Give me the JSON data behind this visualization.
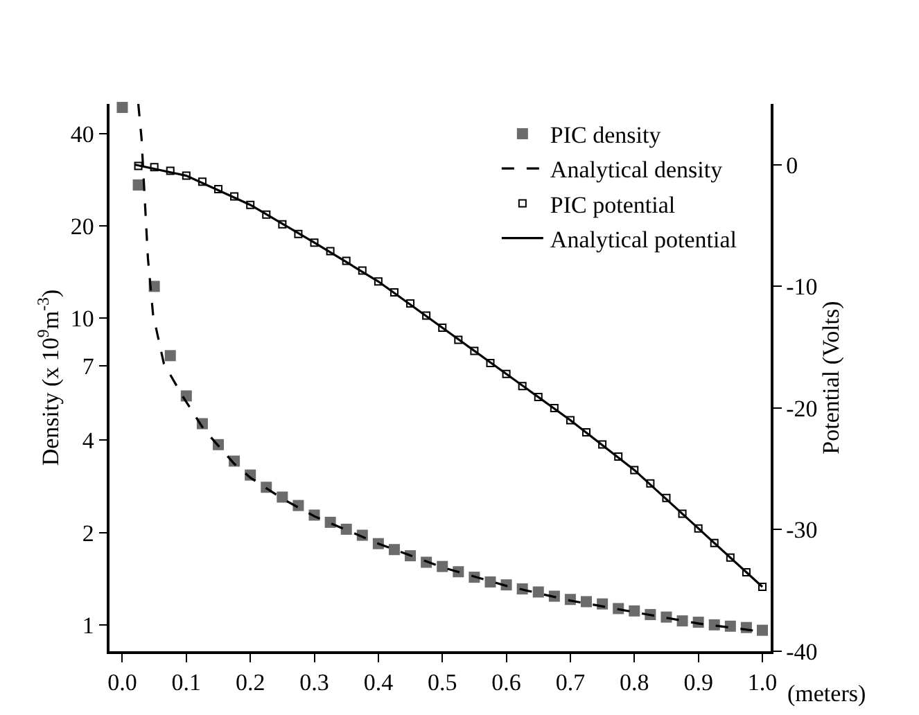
{
  "chart_data": {
    "type": "scatter",
    "xlabel": "(meters)",
    "ylabel": "Density (x 10$^{9}$m$^{-3}$)",
    "y2label": "Potential (Volts)",
    "log": "y",
    "grid": false,
    "legend": "top right",
    "xlim": [
      -0.02,
      1.013
    ],
    "xticks": [
      {
        "value": 0,
        "label": "0.0"
      },
      0.1,
      0.2,
      0.3,
      0.4,
      0.5,
      0.6,
      0.7,
      0.8,
      0.9,
      {
        "value": 1,
        "label": "1.0"
      }
    ],
    "ylim": [
      0.82,
      50
    ],
    "yticks": [
      1,
      2,
      4,
      7,
      10,
      20,
      40
    ],
    "y2lim": [
      -40,
      5
    ],
    "y2ticks": [
      -40,
      -30,
      -20,
      -10,
      0
    ],
    "series": [
      {
        "name": "PIC density",
        "type": "scatter",
        "marker": "square",
        "color": "#6b6b6b",
        "x": [
          0,
          0.025,
          0.05,
          0.075,
          0.1,
          0.125,
          0.15,
          0.175,
          0.2,
          0.225,
          0.25,
          0.275,
          0.3,
          0.325,
          0.35,
          0.375,
          0.4,
          0.425,
          0.45,
          0.475,
          0.5,
          0.525,
          0.55,
          0.575,
          0.6,
          0.625,
          0.65,
          0.675,
          0.7,
          0.725,
          0.75,
          0.775,
          0.8,
          0.825,
          0.85,
          0.875,
          0.9,
          0.925,
          0.95,
          0.975,
          1.0
        ],
        "values": [
          48.7,
          27.2,
          12.7,
          7.55,
          5.58,
          4.53,
          3.87,
          3.42,
          3.08,
          2.81,
          2.61,
          2.45,
          2.28,
          2.16,
          2.05,
          1.96,
          1.84,
          1.76,
          1.68,
          1.6,
          1.55,
          1.49,
          1.43,
          1.38,
          1.35,
          1.31,
          1.28,
          1.24,
          1.21,
          1.19,
          1.17,
          1.13,
          1.11,
          1.08,
          1.06,
          1.03,
          1.02,
          1.0,
          0.99,
          0.98,
          0.96
        ]
      },
      {
        "name": "Analytical density",
        "type": "line",
        "line_style": "dashed",
        "marker": "none",
        "color": "#000000",
        "x": [
          0.025,
          0.03,
          0.04,
          0.048,
          0.065,
          0.095,
          0.127,
          0.175,
          0.2,
          0.25,
          0.3,
          0.4,
          0.5,
          0.6,
          0.7,
          0.8,
          0.9,
          1.0
        ],
        "values": [
          50,
          38.7,
          15.7,
          10.3,
          7.1,
          5.54,
          4.35,
          3.35,
          3.02,
          2.58,
          2.26,
          1.84,
          1.54,
          1.34,
          1.2,
          1.1,
          1.01,
          0.95
        ]
      },
      {
        "name": "PIC potential",
        "type": "scatter",
        "marker": "square",
        "axis": "y2",
        "color": "#000000",
        "x": [
          0.025,
          0.05,
          0.075,
          0.1,
          0.125,
          0.15,
          0.175,
          0.2,
          0.225,
          0.25,
          0.275,
          0.3,
          0.325,
          0.35,
          0.375,
          0.4,
          0.425,
          0.45,
          0.475,
          0.5,
          0.525,
          0.55,
          0.575,
          0.6,
          0.625,
          0.65,
          0.675,
          0.7,
          0.725,
          0.75,
          0.775,
          0.8,
          0.825,
          0.85,
          0.875,
          0.9,
          0.925,
          0.95,
          0.975,
          1.0
        ],
        "values": [
          -0.1,
          -0.2,
          -0.5,
          -0.9,
          -1.4,
          -2.0,
          -2.6,
          -3.3,
          -4.1,
          -4.9,
          -5.7,
          -6.4,
          -7.1,
          -7.9,
          -8.7,
          -9.6,
          -10.5,
          -11.4,
          -12.4,
          -13.4,
          -14.4,
          -15.3,
          -16.3,
          -17.2,
          -18.2,
          -19.1,
          -20.0,
          -21.0,
          -22.0,
          -23.0,
          -24.0,
          -25.1,
          -26.2,
          -27.4,
          -28.7,
          -29.9,
          -31.1,
          -32.3,
          -33.5,
          -34.7
        ]
      },
      {
        "name": "Analytical potential",
        "type": "line",
        "line_style": "solid",
        "marker": "none",
        "axis": "y2",
        "color": "#000000",
        "x": [
          0.02,
          0.1,
          0.2,
          0.3,
          0.4,
          0.5,
          0.6,
          0.7,
          0.8,
          0.9,
          1.0
        ],
        "values": [
          0,
          -0.9,
          -3.3,
          -6.4,
          -9.6,
          -13.4,
          -17.2,
          -21.0,
          -25.1,
          -29.9,
          -34.7
        ]
      }
    ]
  }
}
